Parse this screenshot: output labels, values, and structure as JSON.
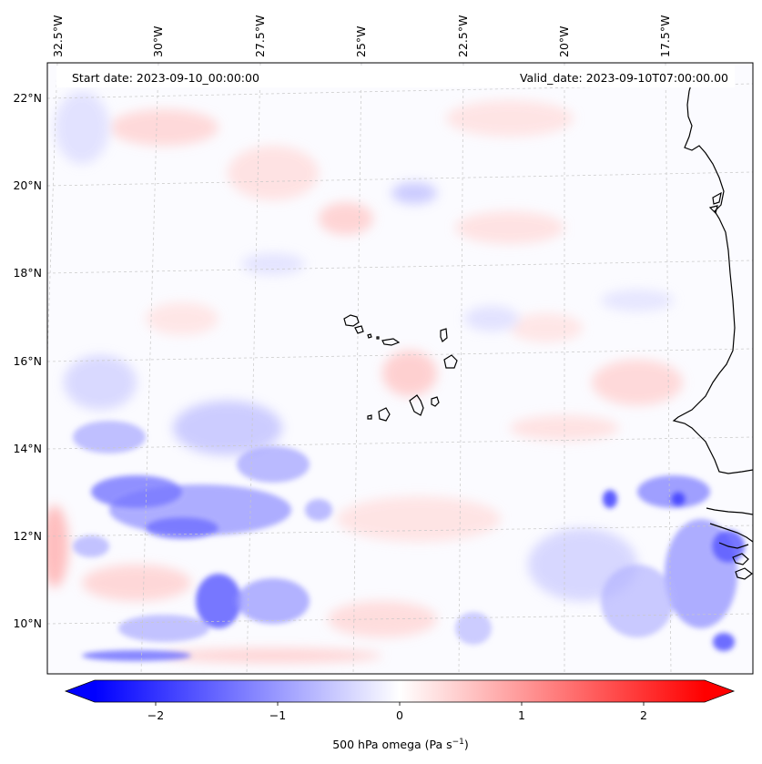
{
  "header": {
    "start_date": "Start date: 2023-09-10_00:00:00",
    "valid_date": "Valid_date: 2023-09-10T07:00:00.00"
  },
  "axes": {
    "lon_labels": [
      "32.5°W",
      "30°W",
      "27.5°W",
      "25°W",
      "22.5°W",
      "20°W",
      "17.5°W"
    ],
    "lat_labels": [
      "22°N",
      "20°N",
      "18°N",
      "16°N",
      "14°N",
      "12°N",
      "10°N"
    ]
  },
  "colorbar": {
    "ticks": [
      "−2",
      "−1",
      "0",
      "1",
      "2"
    ],
    "label": "500 hPa omega (Pa s",
    "label_sup": "−1",
    "label_end": ")",
    "colors": {
      "negative": "#0000ff",
      "zero": "#ffffff",
      "positive": "#ff0000"
    }
  },
  "map": {
    "coastline_color": "#000000",
    "gridline_color": "#c8c8c8"
  }
}
